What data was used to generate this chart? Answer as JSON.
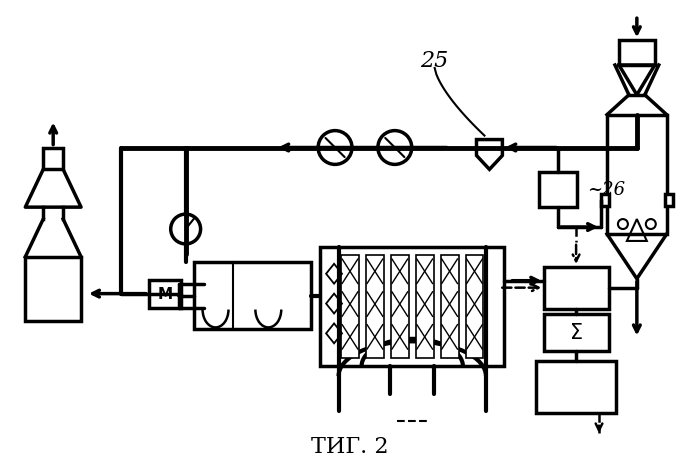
{
  "title": "ΤИГ. 2",
  "background": "#ffffff",
  "line_color": "#000000",
  "lw": 2.5,
  "label_25": "25",
  "label_26": "~26"
}
